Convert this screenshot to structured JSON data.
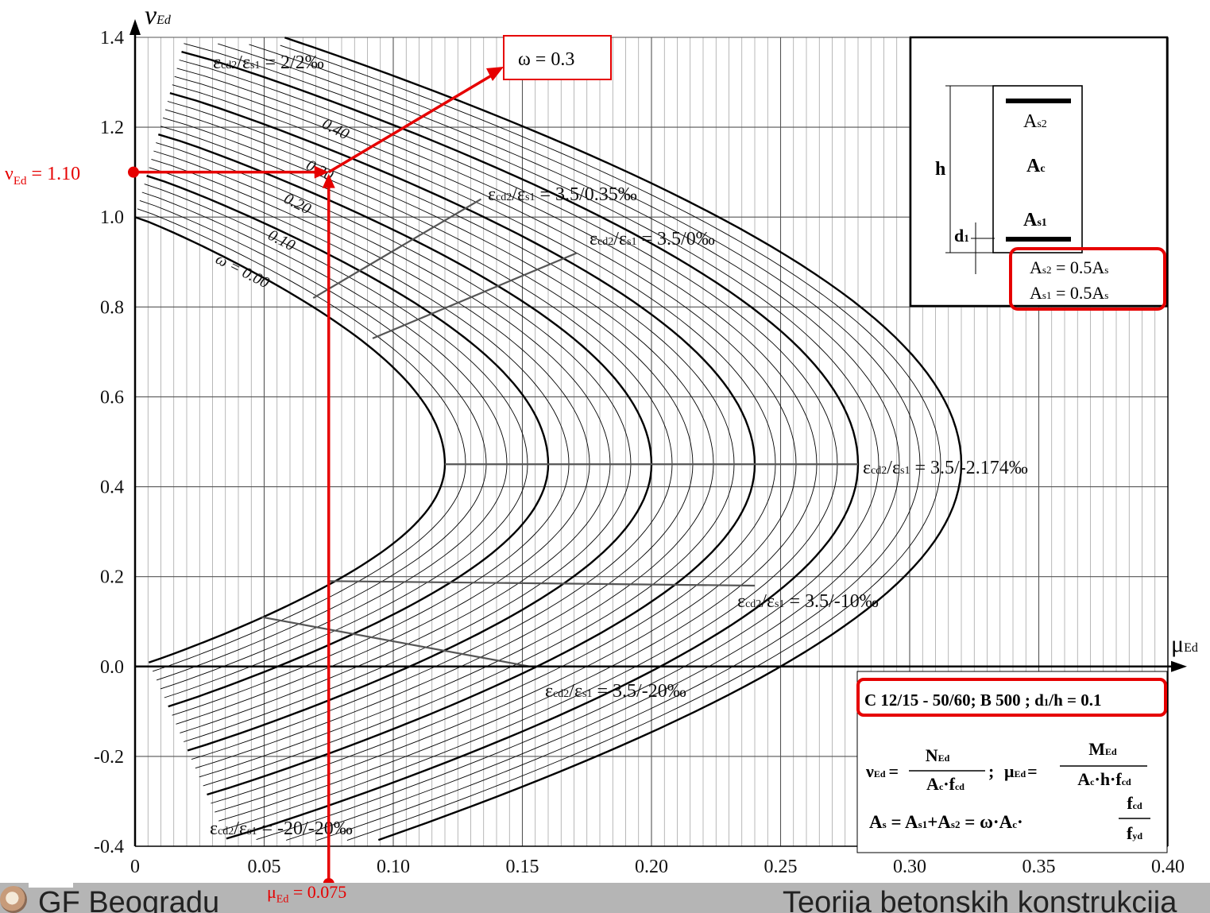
{
  "chart_data": {
    "type": "line",
    "x_axis": {
      "label": "μ",
      "sub": "Ed",
      "range": [
        0,
        0.4
      ],
      "ticks": [
        "0",
        "0.05",
        "0.10",
        "0.15",
        "0.20",
        "0.25",
        "0.30",
        "0.35",
        "0.40"
      ],
      "tick_values": [
        0,
        0.05,
        0.1,
        0.15,
        0.2,
        0.25,
        0.3,
        0.35,
        0.4
      ]
    },
    "y_axis": {
      "label": "ν",
      "sub": "Ed",
      "range": [
        -0.4,
        1.4
      ],
      "ticks": [
        "-0.4",
        "-0.2",
        "0.0",
        "0.2",
        "0.4",
        "0.6",
        "0.8",
        "1.0",
        "1.2",
        "1.4"
      ],
      "tick_values": [
        -0.4,
        -0.2,
        0.0,
        0.2,
        0.4,
        0.6,
        0.8,
        1.0,
        1.2,
        1.4
      ]
    },
    "grid": true,
    "omega_bold_values": [
      0.0,
      0.1,
      0.2,
      0.3,
      0.4,
      0.5
    ],
    "omega_step": 0.02,
    "omega_labels": [
      {
        "text": "ω = 0.00",
        "omega": 0.0
      },
      {
        "text": "0.10",
        "omega": 0.1
      },
      {
        "text": "0.20",
        "omega": 0.2
      },
      {
        "text": "0.30",
        "omega": 0.3
      },
      {
        "text": "0.40",
        "omega": 0.4
      }
    ],
    "strain_labels": [
      {
        "pre": "ε",
        "sub1": "cd2",
        "mid": "/ε",
        "sub2": "s1",
        "post": " = 2/2‰"
      },
      {
        "pre": "ε",
        "sub1": "cd2",
        "mid": "/ε",
        "sub2": "s1",
        "post": " = 3.5/0.35‰"
      },
      {
        "pre": "ε",
        "sub1": "cd2",
        "mid": "/ε",
        "sub2": "s1",
        "post": " = 3.5/0‰"
      },
      {
        "pre": "ε",
        "sub1": "cd2",
        "mid": "/ε",
        "sub2": "s1",
        "post": " = 3.5/-2.174‰"
      },
      {
        "pre": "ε",
        "sub1": "cd2",
        "mid": "/ε",
        "sub2": "s1",
        "post": " = 3.5/-10‰"
      },
      {
        "pre": "ε",
        "sub1": "cd2",
        "mid": "/ε",
        "sub2": "s1",
        "post": " = 3.5/-20‰"
      },
      {
        "pre": "ε",
        "sub1": "cd2",
        "mid": "/ε",
        "sub2": "s1",
        "post": " = -20/-20‰"
      }
    ],
    "section": {
      "h": "h",
      "d1_main": "d",
      "d1_sub": "1",
      "as2_main": "A",
      "as2_sub": "s2",
      "ac_main": "A",
      "ac_sub": "c",
      "as1_main": "A",
      "as1_sub": "s1",
      "ratio1": "A",
      "ratio1_sub": "s2",
      "ratio1_rest": " = 0.5A",
      "ratio1_end": "s",
      "ratio2": "A",
      "ratio2_sub": "s1",
      "ratio2_rest": " = 0.5A",
      "ratio2_end": "s"
    },
    "material": {
      "text": "C 12/15 - 50/60; B 500 ; d",
      "sub": "1",
      "rest": "/h = 0.1"
    },
    "formulas": {
      "nu": "ν",
      "nu_sub": "Ed",
      "eq": "=",
      "N": "N",
      "N_sub": "Ed",
      "den1": "A",
      "den1_sub": "c",
      "den1_rest": "·f",
      "den1_end": "cd",
      "sep": ";",
      "mu": "μ",
      "mu_sub": "Ed",
      "M": "M",
      "M_sub": "Ed",
      "den2": "A",
      "den2_sub": "c",
      "den2_rest": "·h·f",
      "den2_end": "cd",
      "as_line_a": "A",
      "as_line_a_sub": "s",
      "as_line_b": " = A",
      "as_line_b_sub": "s1",
      "as_line_c": "+A",
      "as_line_c_sub": "s2",
      "as_line_d": " = ω·A",
      "as_line_d_sub": "c",
      "as_line_e": "·",
      "fcd": "f",
      "fcd_sub": "cd",
      "fyd": "f",
      "fyd_sub": "yd"
    },
    "annotations": {
      "nu_ed_main": "ν",
      "nu_ed_sub": "Ed",
      "nu_ed_rest": " = 1.10",
      "nu_ed_value": 1.1,
      "mu_ed_main": "μ",
      "mu_ed_sub": "Ed",
      "mu_ed_rest": " = 0.075",
      "mu_ed_value": 0.075,
      "omega_result": "ω = 0.3",
      "accent": "#e60000"
    }
  },
  "footer": {
    "left": "GF Beogradu",
    "right": "Teorija betonskih konstrukcija"
  }
}
